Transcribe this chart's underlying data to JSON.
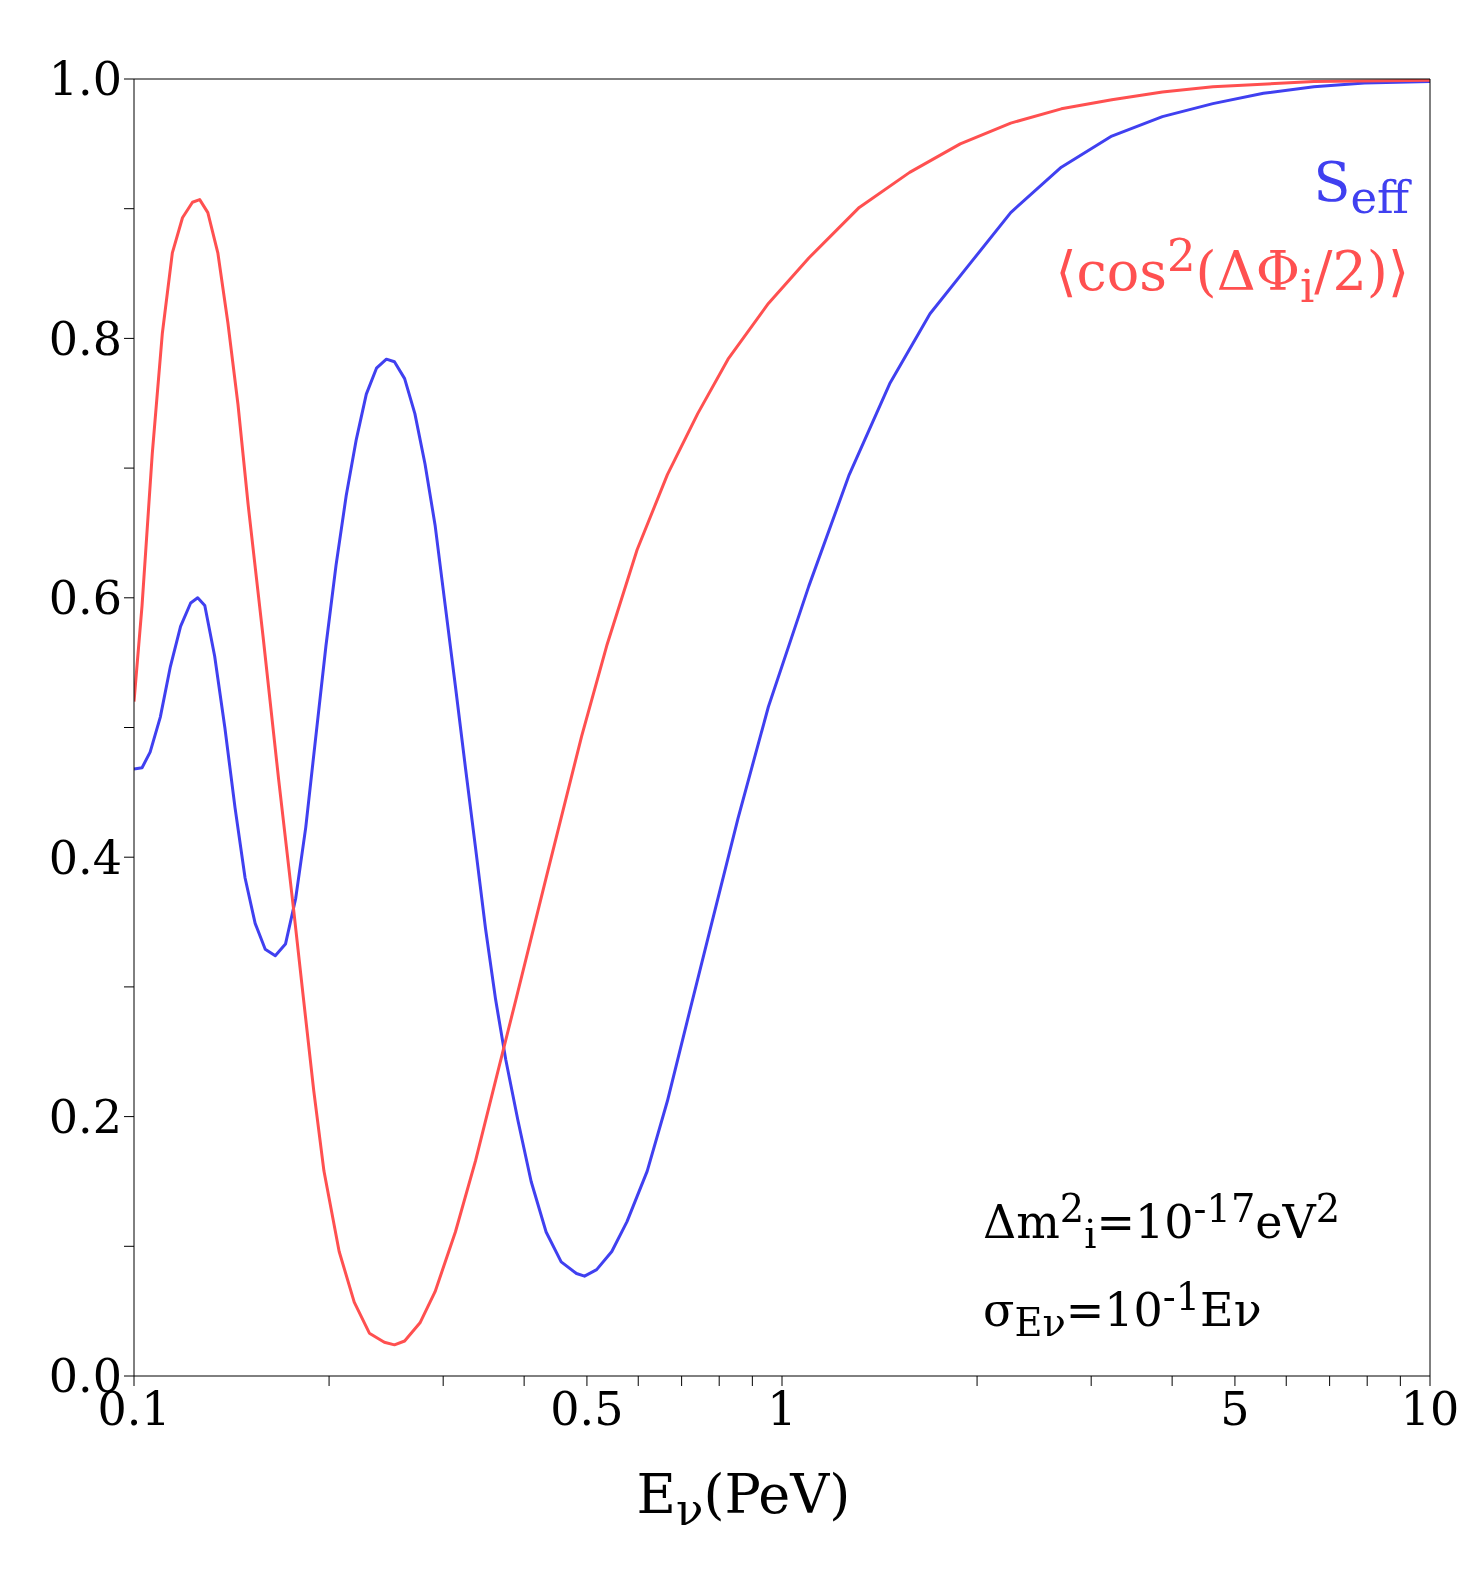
{
  "chart_data": {
    "type": "line",
    "xlabel": "E$_{ν}$(PeV)",
    "log": "x",
    "legend": "top right",
    "marker": "none",
    "line_style": "solid",
    "xlim": [
      0.1,
      10
    ],
    "xticks": [
      0.1,
      {
        "value": 0.2,
        "label": null
      },
      {
        "value": 0.3,
        "label": null
      },
      {
        "value": 0.4,
        "label": null
      },
      0.5,
      {
        "value": 0.6,
        "label": null
      },
      {
        "value": 0.7,
        "label": null
      },
      {
        "value": 0.8,
        "label": null
      },
      {
        "value": 0.9,
        "label": null
      },
      1,
      {
        "value": 2,
        "label": null
      },
      {
        "value": 3,
        "label": null
      },
      {
        "value": 4,
        "label": null
      },
      5,
      {
        "value": 6,
        "label": null
      },
      {
        "value": 7,
        "label": null
      },
      {
        "value": 8,
        "label": null
      },
      {
        "value": 9,
        "label": null
      },
      10
    ],
    "ylim": [
      0,
      1
    ],
    "yticks": [
      {
        "value": 0,
        "label": "0.0"
      },
      {
        "value": 0.1,
        "label": null
      },
      0.2,
      {
        "value": 0.3,
        "label": null
      },
      0.4,
      {
        "value": 0.5,
        "label": null
      },
      0.6,
      {
        "value": 0.7,
        "label": null
      },
      0.8,
      {
        "value": 0.9,
        "label": null
      },
      {
        "value": 1,
        "label": "1.0"
      }
    ],
    "annotations": [
      "Δm$^{2}$$_{i}$=10$^{-17}$eV$^{2}$",
      "σ$_{Eν}$=10$^{-1}$Eν"
    ],
    "series": [
      {
        "name": "S$_{eff}$",
        "color": "#4040f0",
        "x": [
          0.1,
          0.1029,
          0.1059,
          0.1098,
          0.1138,
          0.118,
          0.1223,
          0.1254,
          0.1286,
          0.1332,
          0.1381,
          0.1432,
          0.1484,
          0.1538,
          0.1594,
          0.1652,
          0.1713,
          0.1776,
          0.1841,
          0.1908,
          0.1978,
          0.205,
          0.2126,
          0.2203,
          0.2283,
          0.2367,
          0.2452,
          0.2523,
          0.2616,
          0.2713,
          0.2813,
          0.2915,
          0.3022,
          0.3133,
          0.3247,
          0.3366,
          0.3487,
          0.3615,
          0.3747,
          0.3913,
          0.4101,
          0.4325,
          0.4563,
          0.4818,
          0.4957,
          0.5176,
          0.5462,
          0.5765,
          0.6194,
          0.6655,
          0.7152,
          0.7682,
          0.8553,
          0.9528,
          1.1,
          1.27,
          1.466,
          1.692,
          1.953,
          2.254,
          2.698,
          3.228,
          3.864,
          4.623,
          5.533,
          6.62,
          7.923,
          10
        ],
        "values": [
          0.468,
          0.469,
          0.481,
          0.508,
          0.547,
          0.578,
          0.596,
          0.6,
          0.594,
          0.555,
          0.5,
          0.438,
          0.384,
          0.349,
          0.329,
          0.324,
          0.333,
          0.368,
          0.423,
          0.493,
          0.563,
          0.625,
          0.679,
          0.722,
          0.757,
          0.777,
          0.784,
          0.782,
          0.769,
          0.742,
          0.703,
          0.656,
          0.594,
          0.532,
          0.469,
          0.407,
          0.345,
          0.29,
          0.244,
          0.197,
          0.15,
          0.111,
          0.088,
          0.079,
          0.077,
          0.082,
          0.096,
          0.119,
          0.158,
          0.212,
          0.275,
          0.337,
          0.43,
          0.516,
          0.609,
          0.695,
          0.765,
          0.819,
          0.858,
          0.897,
          0.932,
          0.956,
          0.971,
          0.981,
          0.989,
          0.994,
          0.997,
          0.998
        ]
      },
      {
        "name": "⟨cos$^{2}$(ΔΦ$_{i}$/2)⟩",
        "color": "#ff5050",
        "x": [
          0.1,
          0.1029,
          0.1067,
          0.1106,
          0.1146,
          0.1188,
          0.1231,
          0.1263,
          0.13,
          0.1347,
          0.1396,
          0.1447,
          0.15,
          0.1582,
          0.1671,
          0.1763,
          0.1827,
          0.1894,
          0.1964,
          0.2073,
          0.2187,
          0.2308,
          0.2434,
          0.2523,
          0.2616,
          0.2763,
          0.2915,
          0.3133,
          0.3366,
          0.3615,
          0.3884,
          0.4325,
          0.4905,
          0.5364,
          0.5976,
          0.6655,
          0.7412,
          0.8255,
          0.9528,
          1.1,
          1.316,
          1.574,
          1.884,
          2.254,
          2.698,
          3.228,
          3.864,
          4.623,
          6.62,
          10
        ],
        "values": [
          0.52,
          0.594,
          0.711,
          0.804,
          0.866,
          0.893,
          0.905,
          0.907,
          0.897,
          0.866,
          0.812,
          0.749,
          0.672,
          0.57,
          0.461,
          0.36,
          0.29,
          0.22,
          0.158,
          0.096,
          0.057,
          0.033,
          0.026,
          0.024,
          0.027,
          0.041,
          0.065,
          0.111,
          0.166,
          0.228,
          0.29,
          0.384,
          0.493,
          0.563,
          0.637,
          0.695,
          0.742,
          0.784,
          0.827,
          0.862,
          0.901,
          0.928,
          0.95,
          0.966,
          0.977,
          0.984,
          0.99,
          0.994,
          0.998,
          0.999
        ]
      }
    ]
  }
}
